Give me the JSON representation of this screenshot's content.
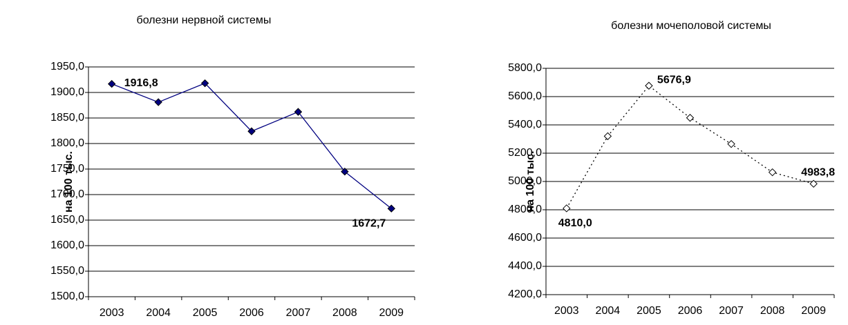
{
  "chart_data": [
    {
      "type": "line",
      "title": "болезни нервной системы",
      "y_label": "на 100 тыс.",
      "categories": [
        "2003",
        "2004",
        "2005",
        "2006",
        "2007",
        "2008",
        "2009"
      ],
      "series": [
        {
          "color": "#000080",
          "line_style": "solid",
          "marker_fill": "filled",
          "values": [
            1916.8,
            1881,
            1918,
            1824,
            1862,
            1745,
            1672.7
          ],
          "value_labels": [
            "1916,8",
            null,
            null,
            null,
            null,
            null,
            "1672,7"
          ]
        }
      ],
      "ylim": [
        1500,
        1950
      ],
      "yticks": [
        {
          "value": 1500,
          "label": "1500,0"
        },
        {
          "value": 1550,
          "label": "1550,0"
        },
        {
          "value": 1600,
          "label": "1600,0"
        },
        {
          "value": 1650,
          "label": "1650,0"
        },
        {
          "value": 1700,
          "label": "1700,0"
        },
        {
          "value": 1750,
          "label": "1750,0"
        },
        {
          "value": 1800,
          "label": "1800,0"
        },
        {
          "value": 1850,
          "label": "1850,0"
        },
        {
          "value": 1900,
          "label": "1900,0"
        },
        {
          "value": 1950,
          "label": "1950,0"
        }
      ],
      "grid": true
    },
    {
      "type": "line",
      "title": "болезни мочеполовой системы",
      "y_label": "на 100 тыс.",
      "categories": [
        "2003",
        "2004",
        "2005",
        "2006",
        "2007",
        "2008",
        "2009"
      ],
      "series": [
        {
          "color": "#000000",
          "line_style": "dotted",
          "marker_fill": "hollow",
          "values": [
            4810.0,
            5320,
            5676.9,
            5450,
            5265,
            5065,
            4983.8
          ],
          "value_labels": [
            "4810,0",
            null,
            "5676,9",
            null,
            null,
            null,
            "4983,8"
          ]
        }
      ],
      "ylim": [
        4200,
        5800
      ],
      "yticks": [
        {
          "value": 4200,
          "label": "4200,0"
        },
        {
          "value": 4400,
          "label": "4400,0"
        },
        {
          "value": 4600,
          "label": "4600,0"
        },
        {
          "value": 4800,
          "label": "4800,0"
        },
        {
          "value": 5000,
          "label": "5000,0"
        },
        {
          "value": 5200,
          "label": "5200,0"
        },
        {
          "value": 5400,
          "label": "5400,0"
        },
        {
          "value": 5600,
          "label": "5600,0"
        },
        {
          "value": 5800,
          "label": "5800,0"
        }
      ],
      "grid": true
    }
  ]
}
